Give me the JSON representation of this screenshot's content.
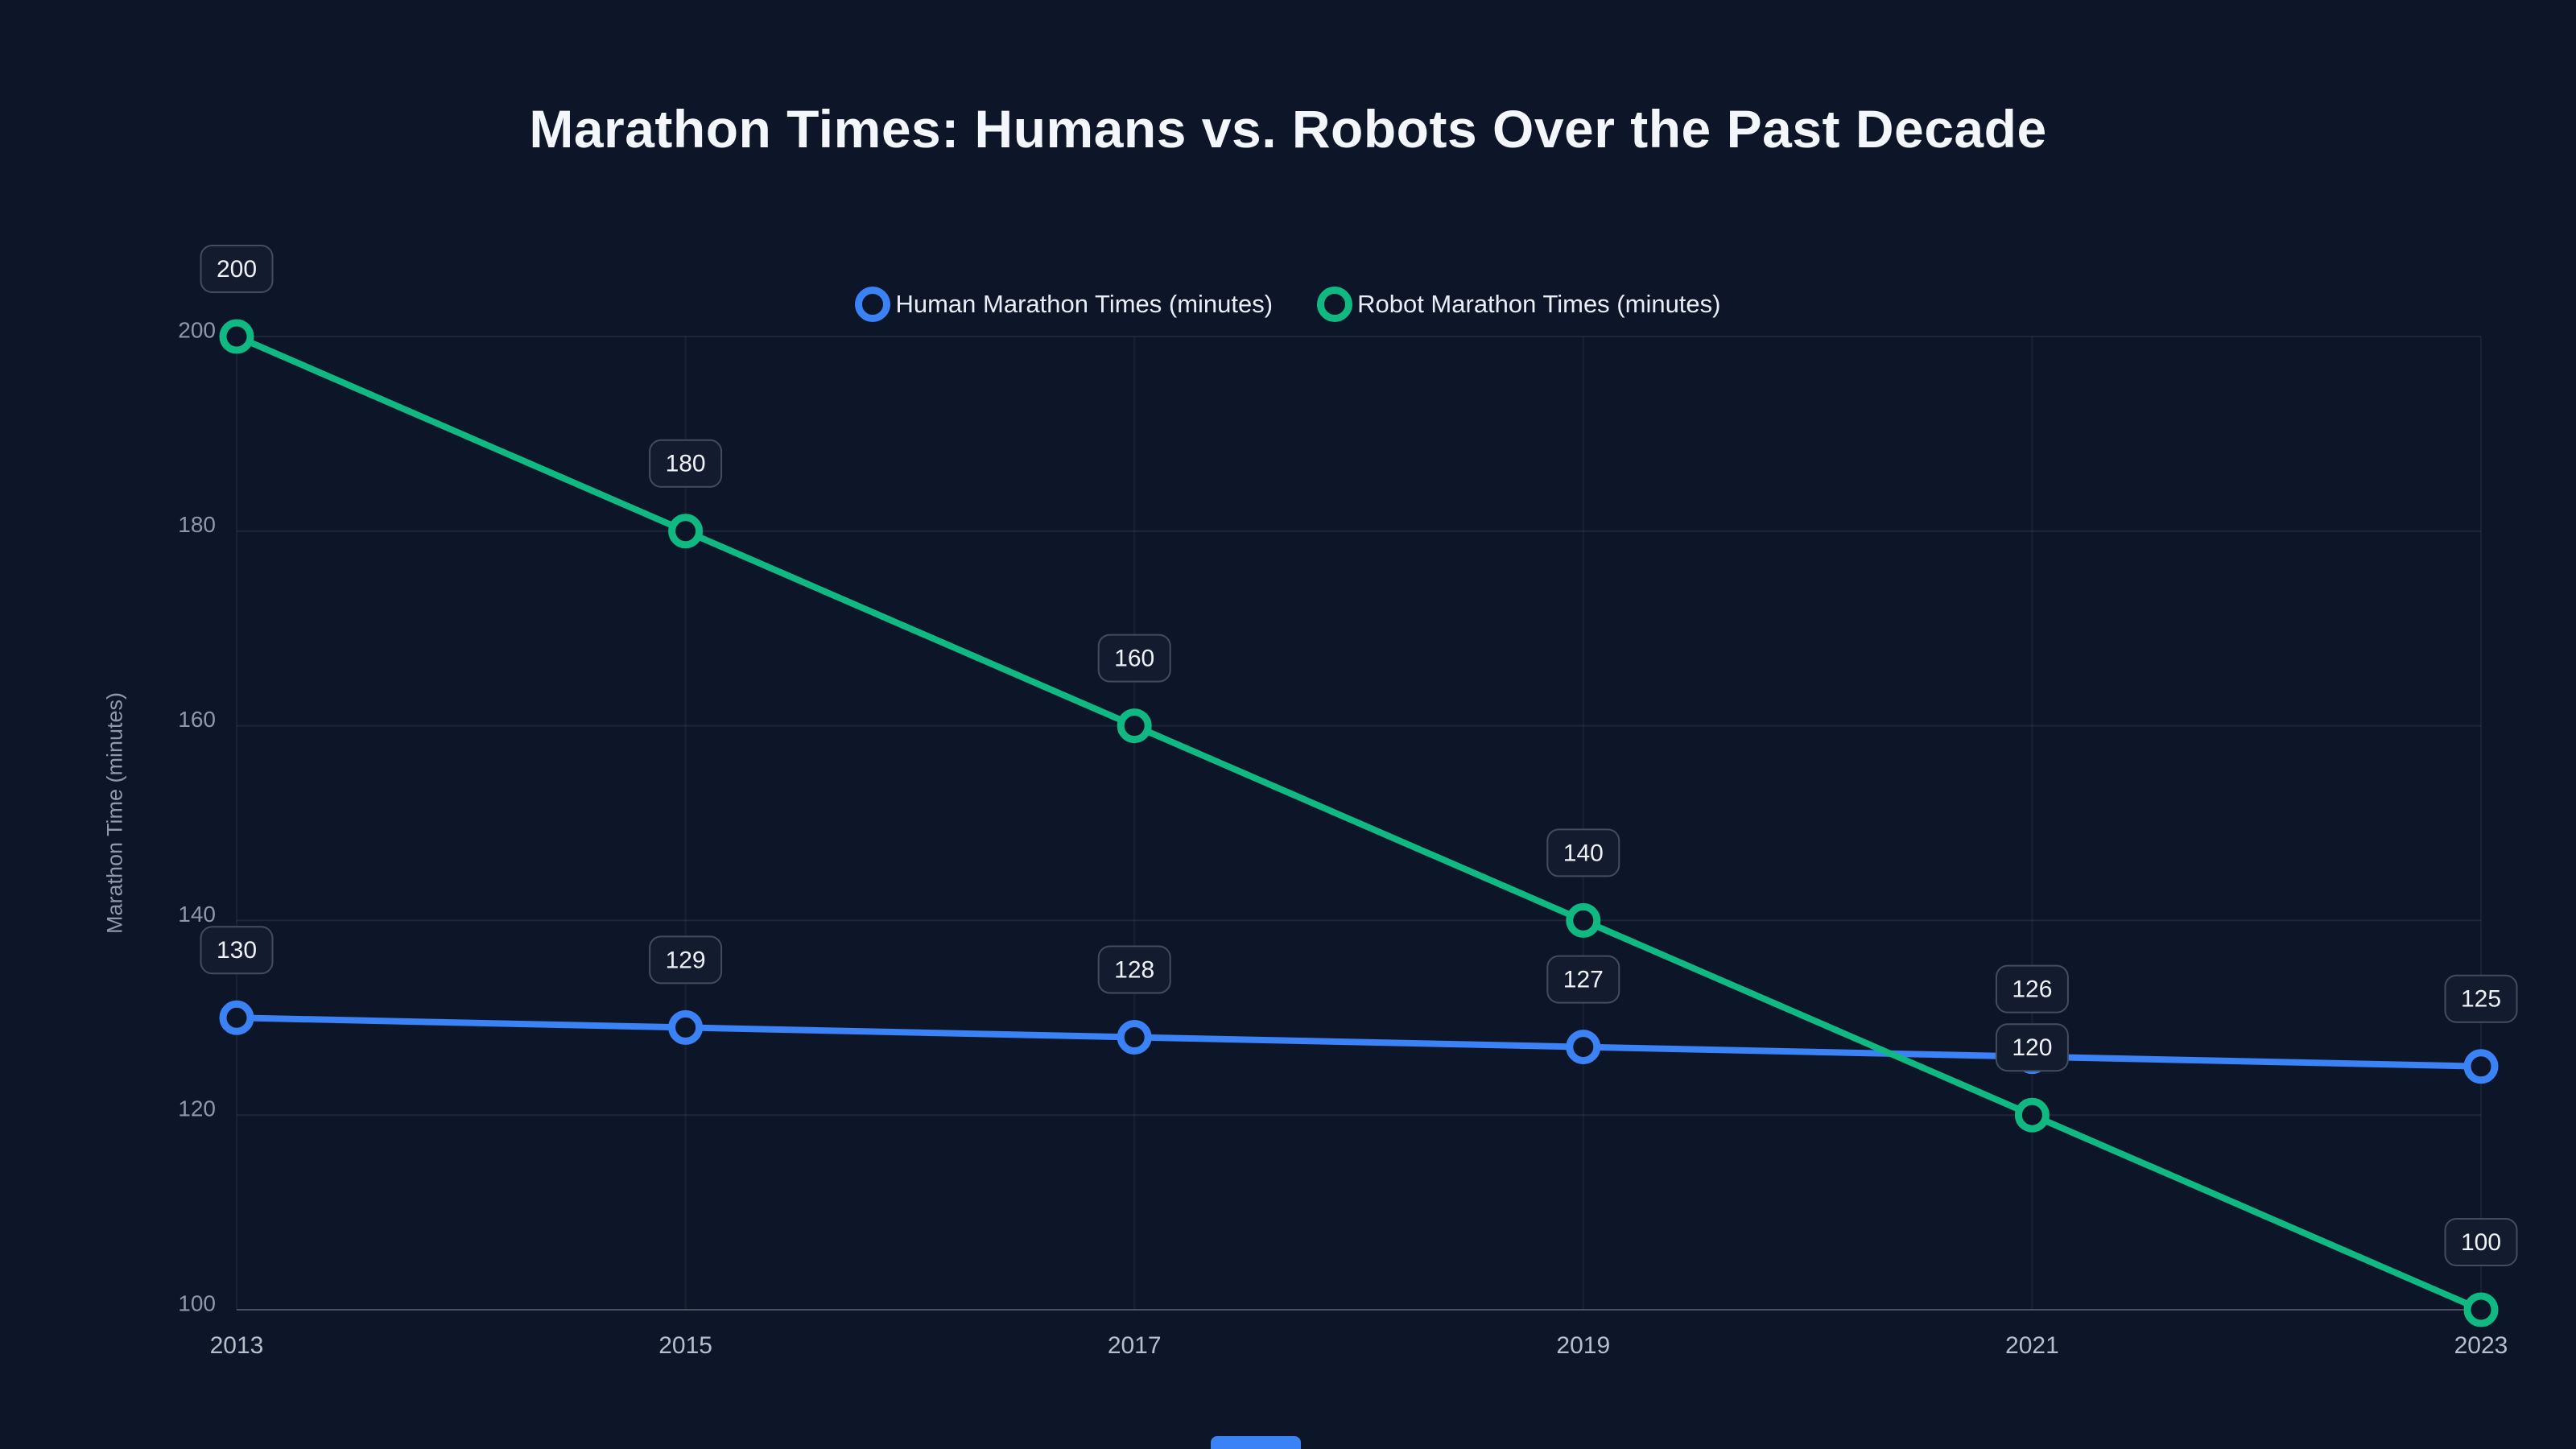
{
  "colors": {
    "background": "#0d1628",
    "human_series": "#3b82f6",
    "robot_series": "#10b981",
    "grid": "rgba(255,255,255,0.07)",
    "axis_line": "rgba(255,255,255,0.25)",
    "tick_text_y": "#8f98ab",
    "tick_text_x": "#b6bdcb",
    "label_box_fill": "#131c2e",
    "label_box_border": "#414d63",
    "label_text": "#eef1f6",
    "accent_bar": "#3b82f6"
  },
  "chart_data": {
    "type": "line",
    "title": "Marathon Times: Humans vs. Robots Over the Past Decade",
    "x": [
      2013,
      2015,
      2017,
      2019,
      2021,
      2023
    ],
    "xticks": [
      "2013",
      "2015",
      "2017",
      "2019",
      "2021",
      "2023"
    ],
    "series": [
      {
        "name": "Human Marathon Times (minutes)",
        "color": "#3b82f6",
        "values": [
          130,
          129,
          128,
          127,
          126,
          125
        ],
        "point_labels": [
          "130",
          "129",
          "128",
          "127",
          "126",
          "125"
        ]
      },
      {
        "name": "Robot Marathon Times (minutes)",
        "color": "#10b981",
        "values": [
          200,
          180,
          160,
          140,
          120,
          100
        ],
        "point_labels": [
          "200",
          "180",
          "160",
          "140",
          "120",
          "100"
        ]
      }
    ],
    "xlabel": "",
    "ylabel": "Marathon Time (minutes)",
    "ylim": [
      100,
      200
    ],
    "yticks": [
      100,
      120,
      140,
      160,
      180,
      200
    ],
    "grid": true,
    "legend_position": "top",
    "point_labels_shown": true
  }
}
